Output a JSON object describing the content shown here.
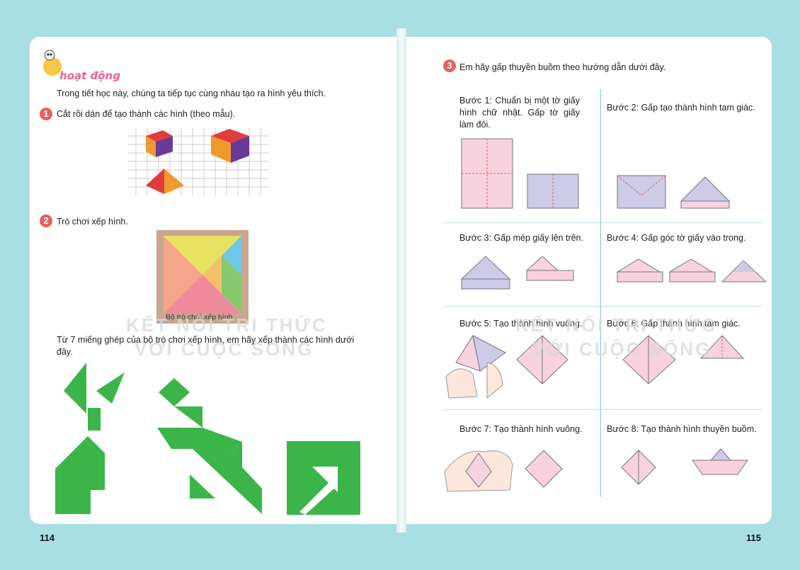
{
  "left_page": {
    "activity_title": "hoạt động",
    "intro": "Trong tiết học này, chúng ta tiếp tục cùng nhau tạo ra hình yêu thích.",
    "task1": {
      "number": "1",
      "text": "Cắt rồi dán để tạo thành các hình (theo mẫu)."
    },
    "task2": {
      "number": "2",
      "text": "Trò chơi xếp hình.",
      "caption": "Bộ trò chơi xếp hình"
    },
    "task2_prompt": "Từ 7 miếng ghép của bộ trò chơi xếp hình, em hãy xếp thành các hình dưới đây.",
    "page_number": "114",
    "watermark_line1": "KẾT NỐI TRI THỨC",
    "watermark_line2": "VỚI CUỘC SỐNG"
  },
  "right_page": {
    "task3": {
      "number": "3",
      "text": "Em hãy gấp thuyền buồm theo hướng dẫn dưới đây."
    },
    "steps": [
      {
        "label": "Bước 1: Chuẩn bị một tờ giấy hình chữ nhật. Gấp tờ giấy làm đôi."
      },
      {
        "label": "Bước 2: Gấp tạo thành hình tam giác."
      },
      {
        "label": "Bước 3: Gấp mép giấy lên trên."
      },
      {
        "label": "Bước 4: Gấp góc tờ giấy vào trong."
      },
      {
        "label": "Bước 5: Tạo thành hình vuông."
      },
      {
        "label": "Bước 6: Gấp thành hình tam giác."
      },
      {
        "label": "Bước 7: Tạo thành hình vuông."
      },
      {
        "label": "Bước 8: Tạo thành hình thuyền buồm."
      }
    ],
    "page_number": "115",
    "watermark_line1": "KẾT NỐI TRI THỨC",
    "watermark_line2": "VỚI CUỘC SỐNG"
  },
  "colors": {
    "tangram_green": "#3bb54a",
    "accent_red": "#e8605c",
    "paper_pink": "#f4c6d8",
    "paper_purple": "#c7c6e6"
  }
}
